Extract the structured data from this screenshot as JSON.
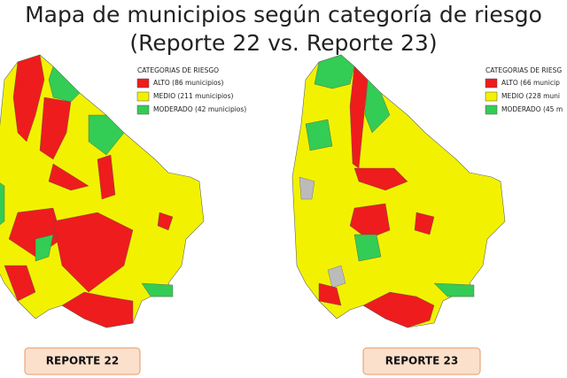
{
  "header": {
    "title": [
      "Mapa de municipios según categoría de riesgo",
      "(Reporte 22 vs. Reporte 23)"
    ]
  },
  "maps": [
    {
      "legend": {
        "title": "CATEGORIAS DE RIESGO",
        "items": [
          {
            "label": "ALTO (86 municipios)",
            "color": "#ee1c1c"
          },
          {
            "label": "MEDIO (211 municipios)",
            "color": "#f2f200"
          },
          {
            "label": "MODERADO (42 municipios)",
            "color": "#33cc55"
          }
        ]
      },
      "label": "REPORTE 22"
    },
    {
      "legend": {
        "title": "CATEGORIAS DE RIESG",
        "items": [
          {
            "label": "ALTO (66 municip",
            "color": "#ee1c1c"
          },
          {
            "label": "MEDIO (228 muni",
            "color": "#f2f200"
          },
          {
            "label": "MODERADO (45 m",
            "color": "#33cc55"
          }
        ]
      },
      "label": "REPORTE 23"
    }
  ]
}
